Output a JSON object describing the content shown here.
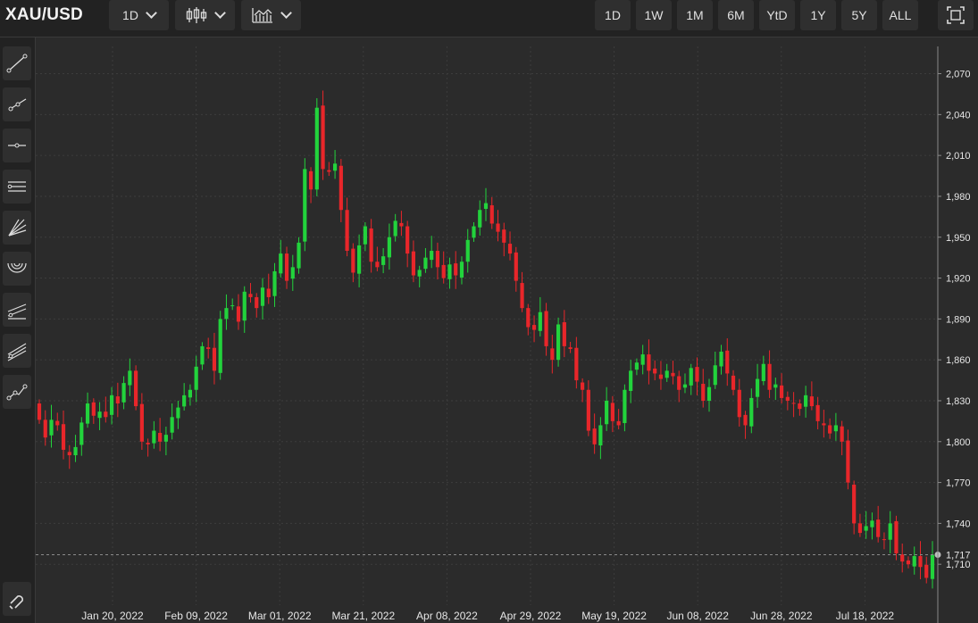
{
  "header": {
    "symbol": "XAU/USD",
    "interval": "1D",
    "chart_type_icon": "candlestick-icon",
    "indicator_icon": "indicator-chart-icon",
    "ranges": [
      "1D",
      "1W",
      "1M",
      "6M",
      "YtD",
      "1Y",
      "5Y",
      "ALL"
    ],
    "fullscreen_icon": "fullscreen-icon"
  },
  "tools": [
    "trend-line-icon",
    "ray-line-icon",
    "horizontal-line-icon",
    "parallel-channel-icon",
    "fan-icon",
    "arc-icon",
    "regression-icon",
    "pitchfork-icon",
    "path-icon",
    "magnet-icon"
  ],
  "colors": {
    "up": "#22d33c",
    "down": "#e8262a",
    "background": "#2b2b2b",
    "grid": "#3d3d3d"
  },
  "chart_data": {
    "type": "candlestick",
    "symbol": "XAU/USD",
    "interval": "1D",
    "ylim": [
      1680,
      2090
    ],
    "yticks": [
      1710,
      1740,
      1770,
      1800,
      1830,
      1860,
      1890,
      1920,
      1950,
      1980,
      2010,
      2040,
      2070
    ],
    "xticks": [
      "Jan 20, 2022",
      "Feb 09, 2022",
      "Mar 01, 2022",
      "Mar 21, 2022",
      "Apr 08, 2022",
      "Apr 29, 2022",
      "May 19, 2022",
      "Jun 08, 2022",
      "Jun 28, 2022",
      "Jul 18, 2022"
    ],
    "last_price": 1717,
    "last_price_label": "1,717",
    "grid": true,
    "closes": [
      1816,
      1803,
      1816,
      1812,
      1794,
      1790,
      1796,
      1814,
      1828,
      1819,
      1822,
      1818,
      1834,
      1828,
      1843,
      1852,
      1826,
      1800,
      1798,
      1808,
      1800,
      1805,
      1818,
      1825,
      1834,
      1838,
      1855,
      1870,
      1868,
      1852,
      1890,
      1898,
      1900,
      1888,
      1910,
      1906,
      1898,
      1913,
      1906,
      1925,
      1938,
      1918,
      1928,
      1946,
      2000,
      1985,
      2045,
      2000,
      1998,
      2004,
      1970,
      1940,
      1924,
      1944,
      1958,
      1932,
      1928,
      1936,
      1950,
      1962,
      1958,
      1938,
      1922,
      1926,
      1935,
      1940,
      1928,
      1920,
      1930,
      1922,
      1932,
      1948,
      1958,
      1970,
      1975,
      1960,
      1954,
      1946,
      1938,
      1918,
      1898,
      1884,
      1882,
      1895,
      1870,
      1860,
      1886,
      1870,
      1868,
      1845,
      1838,
      1808,
      1798,
      1812,
      1830,
      1815,
      1812,
      1838,
      1852,
      1858,
      1864,
      1852,
      1850,
      1846,
      1852,
      1848,
      1838,
      1842,
      1854,
      1844,
      1830,
      1840,
      1856,
      1866,
      1850,
      1838,
      1818,
      1812,
      1832,
      1846,
      1857,
      1838,
      1842,
      1832,
      1830,
      1828,
      1824,
      1834,
      1826,
      1815,
      1812,
      1806,
      1812,
      1800,
      1770,
      1740,
      1733,
      1738,
      1742,
      1730,
      1728,
      1740,
      1718,
      1712,
      1710,
      1716,
      1708,
      1700,
      1717
    ]
  }
}
